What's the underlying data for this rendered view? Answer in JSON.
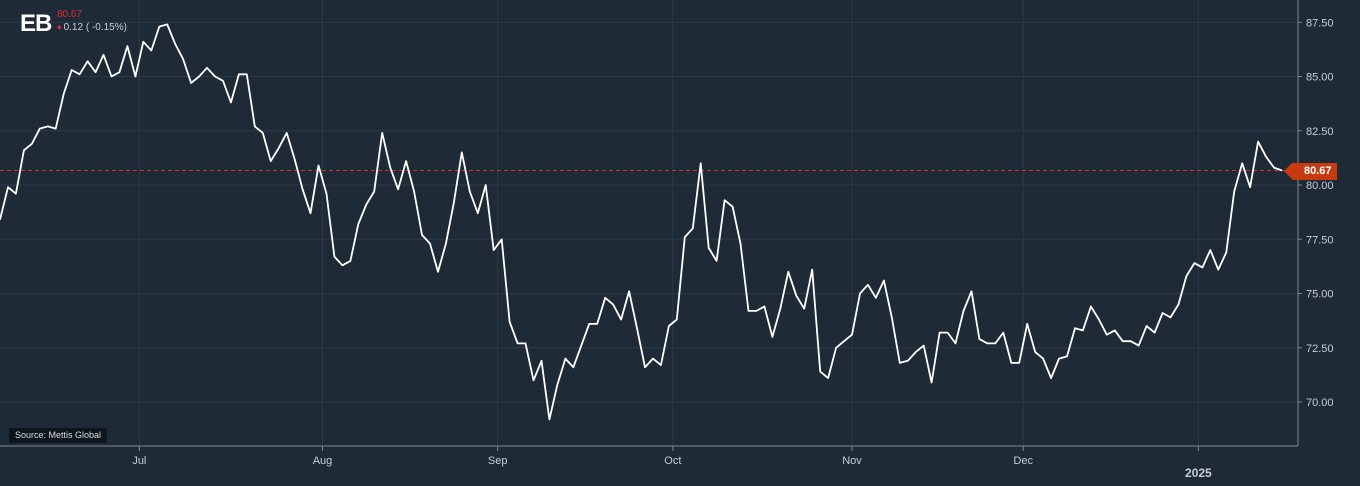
{
  "ticker": "EB",
  "last_price": "80.67",
  "change_text": "0.12 ( -0.15%)",
  "source": "Source: Mettis Global",
  "price_tag": "80.67",
  "colors": {
    "background": "#1e2a36",
    "line": "#ffffff",
    "grid": "#2c3a48",
    "reference_line": "#c0392b",
    "down": "#e0283c",
    "price_tag": "#c83b10"
  },
  "chart_data": {
    "type": "line",
    "title": "",
    "xlabel": "",
    "ylabel": "",
    "ylim": [
      68.0,
      88.5
    ],
    "y_ticks": [
      "70.00",
      "72.50",
      "75.00",
      "77.50",
      "80.00",
      "82.50",
      "85.00",
      "87.50"
    ],
    "x_tick_labels": [
      "Jul",
      "Aug",
      "Sep",
      "Oct",
      "Nov",
      "Dec",
      "2025"
    ],
    "reference_value": 80.67,
    "grid": true,
    "series": [
      {
        "values": [
          78.4,
          79.9,
          79.6,
          81.6,
          81.9,
          82.6,
          82.7,
          82.6,
          84.2,
          85.3,
          85.1,
          85.7,
          85.2,
          86.0,
          85.0,
          85.2,
          86.4,
          85.0,
          86.6,
          86.2,
          87.3,
          87.4,
          86.5,
          85.8,
          84.7,
          85.0,
          85.4,
          85.0,
          84.8,
          83.8,
          85.1,
          85.1,
          82.7,
          82.4,
          81.1,
          81.7,
          82.4,
          81.2,
          79.8,
          78.7,
          80.9,
          79.6,
          76.7,
          76.3,
          76.5,
          78.2,
          79.1,
          79.7,
          82.4,
          80.8,
          79.8,
          81.1,
          79.7,
          77.7,
          77.3,
          76.0,
          77.3,
          79.2,
          81.5,
          79.7,
          78.7,
          80.0,
          77.0,
          77.5,
          73.7,
          72.7,
          72.7,
          71.0,
          71.9,
          69.2,
          70.8,
          72.0,
          71.6,
          72.6,
          73.6,
          73.6,
          74.8,
          74.5,
          73.8,
          75.1,
          73.4,
          71.6,
          72.0,
          71.7,
          73.5,
          73.8,
          77.6,
          78.0,
          81.0,
          77.1,
          76.5,
          79.3,
          79.0,
          77.3,
          74.2,
          74.2,
          74.4,
          73.0,
          74.3,
          76.0,
          74.9,
          74.3,
          76.1,
          71.4,
          71.1,
          72.5,
          72.8,
          73.1,
          75.0,
          75.4,
          74.8,
          75.6,
          73.9,
          71.8,
          71.9,
          72.3,
          72.6,
          70.9,
          73.2,
          73.2,
          72.7,
          74.2,
          75.1,
          72.9,
          72.7,
          72.7,
          73.2,
          71.8,
          71.8,
          73.6,
          72.3,
          72.0,
          71.1,
          72.0,
          72.1,
          73.4,
          73.3,
          74.4,
          73.8,
          73.1,
          73.3,
          72.8,
          72.8,
          72.6,
          73.5,
          73.2,
          74.1,
          73.9,
          74.5,
          75.8,
          76.4,
          76.2,
          77.0,
          76.1,
          76.9,
          79.7,
          81.0,
          79.9,
          82.0,
          81.3,
          80.8,
          80.67
        ]
      }
    ]
  }
}
